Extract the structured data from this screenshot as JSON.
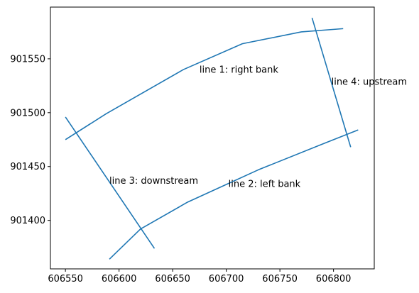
{
  "chart_data": {
    "type": "line",
    "xlim": [
      606536,
      606838
    ],
    "ylim": [
      901355,
      901598
    ],
    "x_ticks": [
      606550,
      606600,
      606650,
      606700,
      606750,
      606800
    ],
    "y_ticks": [
      901400,
      901450,
      901500,
      901550
    ],
    "grid": false,
    "line_color": "#1f77b4",
    "series": [
      {
        "x": [
          606550,
          606588,
          606660,
          606715,
          606770,
          606809
        ],
        "y": [
          901475,
          901499,
          901540,
          901564,
          901575,
          901578
        ]
      },
      {
        "x": [
          606591,
          606620,
          606664,
          606730,
          606790,
          606823
        ],
        "y": [
          901364,
          901392,
          901417,
          901447,
          901471,
          901484
        ]
      },
      {
        "x": [
          606550,
          606633
        ],
        "y": [
          901496,
          901374
        ]
      },
      {
        "x": [
          606780,
          606816
        ],
        "y": [
          901588,
          901468
        ]
      }
    ],
    "annotations": [
      {
        "text": "line 1: right bank",
        "x": 606675,
        "y": 901537
      },
      {
        "text": "line 2: left bank",
        "x": 606702,
        "y": 901431
      },
      {
        "text": "line 3: downstream",
        "x": 606591,
        "y": 901434
      },
      {
        "text": "line 4: upstream",
        "x": 606798,
        "y": 901526
      }
    ]
  }
}
